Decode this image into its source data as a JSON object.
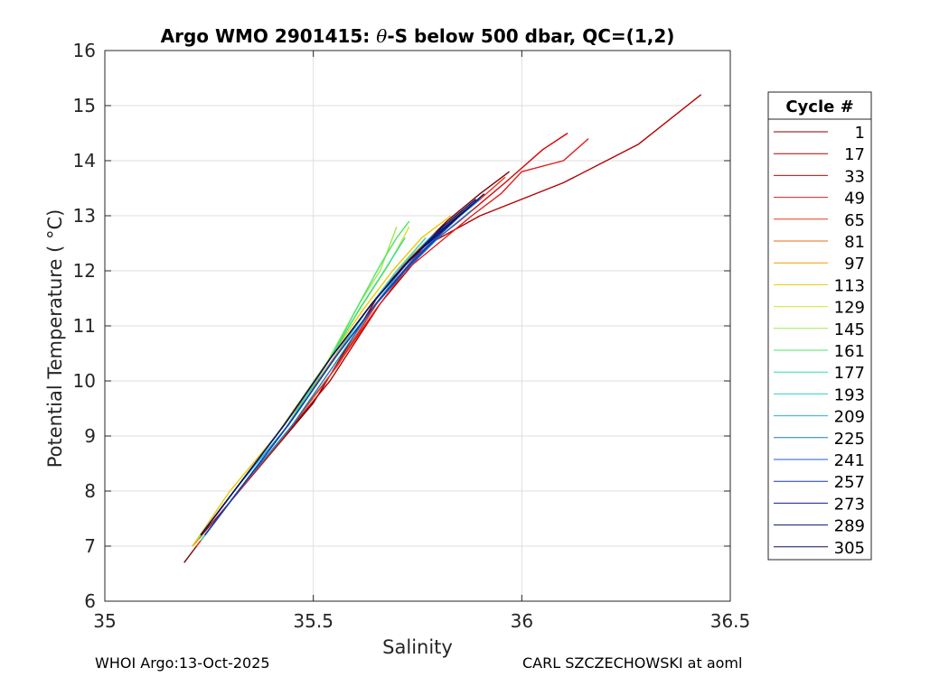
{
  "title_main": "Argo WMO 2901415: ",
  "title_symbol": "θ",
  "title_rest": "-S below 500 dbar,  QC=(1,2)",
  "footer_left": "WHOI Argo:13-Oct-2025",
  "footer_right": "CARL SZCZECHOWSKI at aoml",
  "chart_data": {
    "type": "line",
    "title": "Argo WMO 2901415: θ-S below 500 dbar,  QC=(1,2)",
    "xlabel": "Salinity",
    "ylabel": "Potential Temperature ( °C)",
    "xlim": [
      35,
      36.5
    ],
    "ylim": [
      6,
      16
    ],
    "xticks": [
      35,
      35.5,
      36,
      36.5
    ],
    "xtick_labels": [
      "35",
      "35.5",
      "36",
      "36.5"
    ],
    "yticks": [
      6,
      7,
      8,
      9,
      10,
      11,
      12,
      13,
      14,
      15,
      16
    ],
    "ytick_labels": [
      "6",
      "7",
      "8",
      "9",
      "10",
      "11",
      "12",
      "13",
      "14",
      "15",
      "16"
    ],
    "grid": true,
    "legend": {
      "title": "Cycle #",
      "placement": "outside-right",
      "entries": [
        {
          "label": "1",
          "color": "#7f0000"
        },
        {
          "label": "17",
          "color": "#b40000"
        },
        {
          "label": "33",
          "color": "#dd0000"
        },
        {
          "label": "49",
          "color": "#e51919"
        },
        {
          "label": "65",
          "color": "#e53a1e"
        },
        {
          "label": "81",
          "color": "#e86a10"
        },
        {
          "label": "97",
          "color": "#ea9a00"
        },
        {
          "label": "113",
          "color": "#f0c800"
        },
        {
          "label": "129",
          "color": "#d4e22a"
        },
        {
          "label": "145",
          "color": "#9ee84a"
        },
        {
          "label": "161",
          "color": "#4ce464"
        },
        {
          "label": "177",
          "color": "#2ee096"
        },
        {
          "label": "193",
          "color": "#29d2c8"
        },
        {
          "label": "209",
          "color": "#21b2de"
        },
        {
          "label": "225",
          "color": "#1a7fb8"
        },
        {
          "label": "241",
          "color": "#1e5fd2"
        },
        {
          "label": "257",
          "color": "#1638b4"
        },
        {
          "label": "273",
          "color": "#0c1e8c"
        },
        {
          "label": "289",
          "color": "#081470"
        },
        {
          "label": "305",
          "color": "#0a1060"
        }
      ]
    },
    "series": [
      {
        "cycle": "1",
        "color": "#7f0000",
        "x": [
          35.19,
          35.22,
          35.3,
          35.4,
          35.5,
          35.58,
          35.66,
          35.74,
          35.82,
          35.9,
          35.97
        ],
        "y": [
          6.7,
          7.0,
          7.8,
          8.7,
          9.6,
          10.6,
          11.6,
          12.3,
          12.9,
          13.4,
          13.8
        ]
      },
      {
        "cycle": "17",
        "color": "#b40000",
        "x": [
          35.21,
          35.3,
          35.42,
          35.54,
          35.66,
          35.78,
          35.9,
          36.1,
          36.28,
          36.43
        ],
        "y": [
          7.0,
          7.8,
          8.9,
          10.0,
          11.4,
          12.5,
          13.0,
          13.6,
          14.3,
          15.2
        ]
      },
      {
        "cycle": "33",
        "color": "#dd0000",
        "x": [
          35.22,
          35.32,
          35.44,
          35.56,
          35.66,
          35.75,
          35.85,
          35.96,
          36.05,
          36.11
        ],
        "y": [
          7.0,
          8.0,
          9.1,
          10.3,
          11.5,
          12.3,
          12.9,
          13.6,
          14.2,
          14.5
        ]
      },
      {
        "cycle": "49",
        "color": "#e51919",
        "x": [
          35.22,
          35.31,
          35.43,
          35.55,
          35.65,
          35.72,
          35.8,
          35.88,
          35.95,
          36.0,
          36.1,
          36.16
        ],
        "y": [
          7.0,
          7.9,
          9.0,
          10.2,
          11.3,
          12.0,
          12.5,
          13.0,
          13.4,
          13.8,
          14.0,
          14.4
        ]
      },
      {
        "cycle": "65",
        "color": "#e53a1e",
        "x": [
          35.22,
          35.31,
          35.43,
          35.55,
          35.66,
          35.74,
          35.82,
          35.9,
          35.96
        ],
        "y": [
          7.0,
          7.9,
          9.0,
          10.2,
          11.5,
          12.3,
          12.8,
          13.3,
          13.7
        ]
      },
      {
        "cycle": "81",
        "color": "#e86a10",
        "x": [
          35.21,
          35.3,
          35.41,
          35.52,
          35.63,
          35.72,
          35.8,
          35.88
        ],
        "y": [
          7.0,
          7.9,
          9.0,
          10.1,
          11.3,
          12.1,
          12.7,
          13.2
        ]
      },
      {
        "cycle": "97",
        "color": "#ea9a00",
        "x": [
          35.21,
          35.3,
          35.41,
          35.52,
          35.62,
          35.7,
          35.78,
          35.86
        ],
        "y": [
          7.0,
          7.9,
          9.0,
          10.1,
          11.2,
          12.0,
          12.6,
          13.1
        ]
      },
      {
        "cycle": "113",
        "color": "#f0c800",
        "x": [
          35.21,
          35.3,
          35.41,
          35.52,
          35.62,
          35.69,
          35.76,
          35.83
        ],
        "y": [
          7.0,
          8.0,
          9.0,
          10.2,
          11.3,
          12.0,
          12.6,
          13.0
        ]
      },
      {
        "cycle": "129",
        "color": "#d4e22a",
        "x": [
          35.22,
          35.31,
          35.42,
          35.53,
          35.62,
          35.68,
          35.73
        ],
        "y": [
          7.1,
          8.0,
          9.1,
          10.3,
          11.4,
          12.1,
          12.8
        ]
      },
      {
        "cycle": "145",
        "color": "#9ee84a",
        "x": [
          35.22,
          35.31,
          35.42,
          35.53,
          35.61,
          35.66,
          35.7
        ],
        "y": [
          7.1,
          8.0,
          9.1,
          10.3,
          11.4,
          12.0,
          12.8
        ]
      },
      {
        "cycle": "161",
        "color": "#4ce464",
        "x": [
          35.23,
          35.32,
          35.43,
          35.54,
          35.61,
          35.66,
          35.7,
          35.73
        ],
        "y": [
          7.1,
          8.0,
          9.1,
          10.4,
          11.4,
          12.1,
          12.6,
          12.9
        ]
      },
      {
        "cycle": "177",
        "color": "#2ee096",
        "x": [
          35.23,
          35.32,
          35.43,
          35.54,
          35.61,
          35.67,
          35.72
        ],
        "y": [
          7.1,
          8.0,
          9.1,
          10.4,
          11.3,
          12.0,
          12.6
        ]
      },
      {
        "cycle": "193",
        "color": "#29d2c8",
        "x": [
          35.23,
          35.32,
          35.44,
          35.55,
          35.63,
          35.7,
          35.77
        ],
        "y": [
          7.2,
          8.1,
          9.2,
          10.4,
          11.3,
          12.0,
          12.6
        ]
      },
      {
        "cycle": "209",
        "color": "#21b2de",
        "x": [
          35.23,
          35.32,
          35.44,
          35.55,
          35.64,
          35.71,
          35.78,
          35.85
        ],
        "y": [
          7.2,
          8.1,
          9.2,
          10.4,
          11.3,
          12.0,
          12.6,
          13.0
        ]
      },
      {
        "cycle": "225",
        "color": "#1a7fb8",
        "x": [
          35.24,
          35.33,
          35.45,
          35.56,
          35.64,
          35.72,
          35.8,
          35.88
        ],
        "y": [
          7.2,
          8.1,
          9.2,
          10.4,
          11.3,
          12.0,
          12.6,
          13.1
        ]
      },
      {
        "cycle": "241",
        "color": "#1e5fd2",
        "x": [
          35.24,
          35.33,
          35.45,
          35.56,
          35.66,
          35.74,
          35.82,
          35.9
        ],
        "y": [
          7.2,
          8.1,
          9.3,
          10.5,
          11.5,
          12.2,
          12.8,
          13.3
        ]
      },
      {
        "cycle": "257",
        "color": "#1638b4",
        "x": [
          35.24,
          35.33,
          35.44,
          35.55,
          35.65,
          35.73,
          35.81,
          35.88
        ],
        "y": [
          7.2,
          8.1,
          9.2,
          10.4,
          11.4,
          12.1,
          12.7,
          13.2
        ]
      },
      {
        "cycle": "273",
        "color": "#0c1e8c",
        "x": [
          35.23,
          35.32,
          35.43,
          35.54,
          35.64,
          35.72,
          35.8,
          35.88
        ],
        "y": [
          7.2,
          8.1,
          9.2,
          10.4,
          11.4,
          12.1,
          12.7,
          13.2
        ]
      },
      {
        "cycle": "289",
        "color": "#081470",
        "x": [
          35.23,
          35.32,
          35.43,
          35.54,
          35.64,
          35.73,
          35.81,
          35.89
        ],
        "y": [
          7.2,
          8.1,
          9.2,
          10.4,
          11.4,
          12.2,
          12.8,
          13.3
        ]
      },
      {
        "cycle": "305",
        "color": "#0a1060",
        "x": [
          35.23,
          35.32,
          35.43,
          35.54,
          35.64,
          35.73,
          35.82,
          35.91
        ],
        "y": [
          7.2,
          8.1,
          9.2,
          10.4,
          11.4,
          12.2,
          12.8,
          13.4
        ]
      }
    ]
  }
}
